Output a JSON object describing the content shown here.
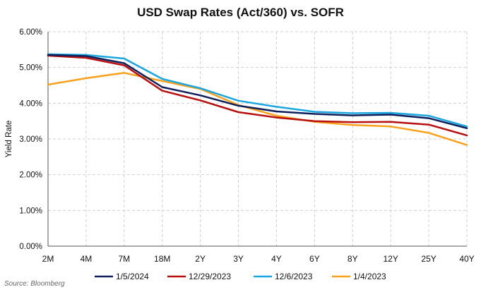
{
  "source": "Source: Bloomberg",
  "chart_data": {
    "type": "line",
    "title": "USD Swap Rates (Act/360) vs. SOFR",
    "xlabel": "",
    "ylabel": "Yield Rate",
    "categories": [
      "2M",
      "4M",
      "7M",
      "18M",
      "2Y",
      "3Y",
      "4Y",
      "6Y",
      "8Y",
      "12Y",
      "25Y",
      "40Y"
    ],
    "ylim": [
      0,
      6
    ],
    "yticks": [
      0,
      1,
      2,
      3,
      4,
      5,
      6
    ],
    "ytick_labels": [
      "0.00%",
      "1.00%",
      "2.00%",
      "3.00%",
      "4.00%",
      "5.00%",
      "6.00%"
    ],
    "grid": true,
    "legend_position": "bottom",
    "series": [
      {
        "name": "1/5/2024",
        "color": "#0f1f5c",
        "values": [
          5.35,
          5.32,
          5.12,
          4.45,
          4.22,
          3.93,
          3.77,
          3.7,
          3.66,
          3.68,
          3.58,
          3.3
        ]
      },
      {
        "name": "12/29/2023",
        "color": "#b80f0f",
        "values": [
          5.33,
          5.27,
          5.06,
          4.35,
          4.08,
          3.75,
          3.6,
          3.5,
          3.47,
          3.48,
          3.4,
          3.1
        ]
      },
      {
        "name": "12/6/2023",
        "color": "#1aa7e0",
        "values": [
          5.37,
          5.35,
          5.25,
          4.68,
          4.42,
          4.07,
          3.9,
          3.76,
          3.72,
          3.73,
          3.65,
          3.35
        ]
      },
      {
        "name": "1/4/2023",
        "color": "#f7a11c",
        "values": [
          4.52,
          4.7,
          4.85,
          4.62,
          4.4,
          3.95,
          3.65,
          3.48,
          3.39,
          3.35,
          3.17,
          2.83
        ]
      }
    ]
  }
}
